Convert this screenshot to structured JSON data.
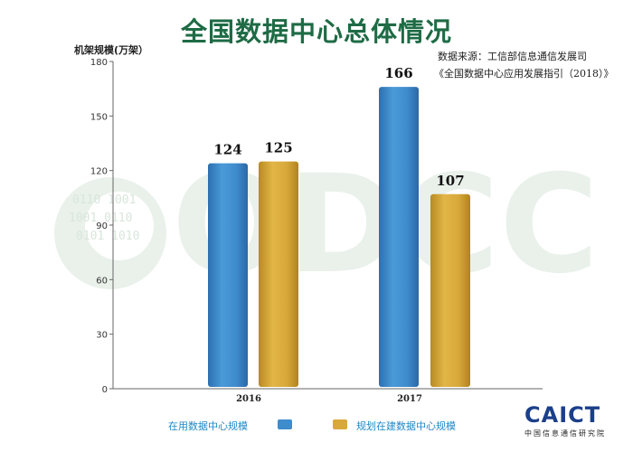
{
  "header": {
    "title": "全国数据中心总体情况",
    "y_axis_label": "机架规模(万架）",
    "source_line1": "数据来源：工信部信息通信发展司",
    "source_line2": "《全国数据中心应用发展指引（2018）》"
  },
  "logo": {
    "brand": "CAICT",
    "subtitle": "中国信息通信研究院"
  },
  "colors": {
    "series_in_use": "#3f8ccd",
    "series_planned": "#d8a93a",
    "title": "#1e6b45",
    "watermark": "#cfe0d3"
  },
  "chart_data": {
    "type": "bar",
    "title": "全国数据中心总体情况",
    "ylabel": "机架规模(万架）",
    "xlabel": "",
    "categories": [
      "2016",
      "2017"
    ],
    "series": [
      {
        "name": "在用数据中心规模",
        "values": [
          124,
          166
        ]
      },
      {
        "name": "规划在建数据中心规模",
        "values": [
          125,
          107
        ]
      }
    ],
    "ylim": [
      0,
      180
    ],
    "yticks": [
      0,
      30,
      60,
      90,
      120,
      150,
      180
    ],
    "grid": false,
    "legend_position": "bottom",
    "data_labels": true
  }
}
